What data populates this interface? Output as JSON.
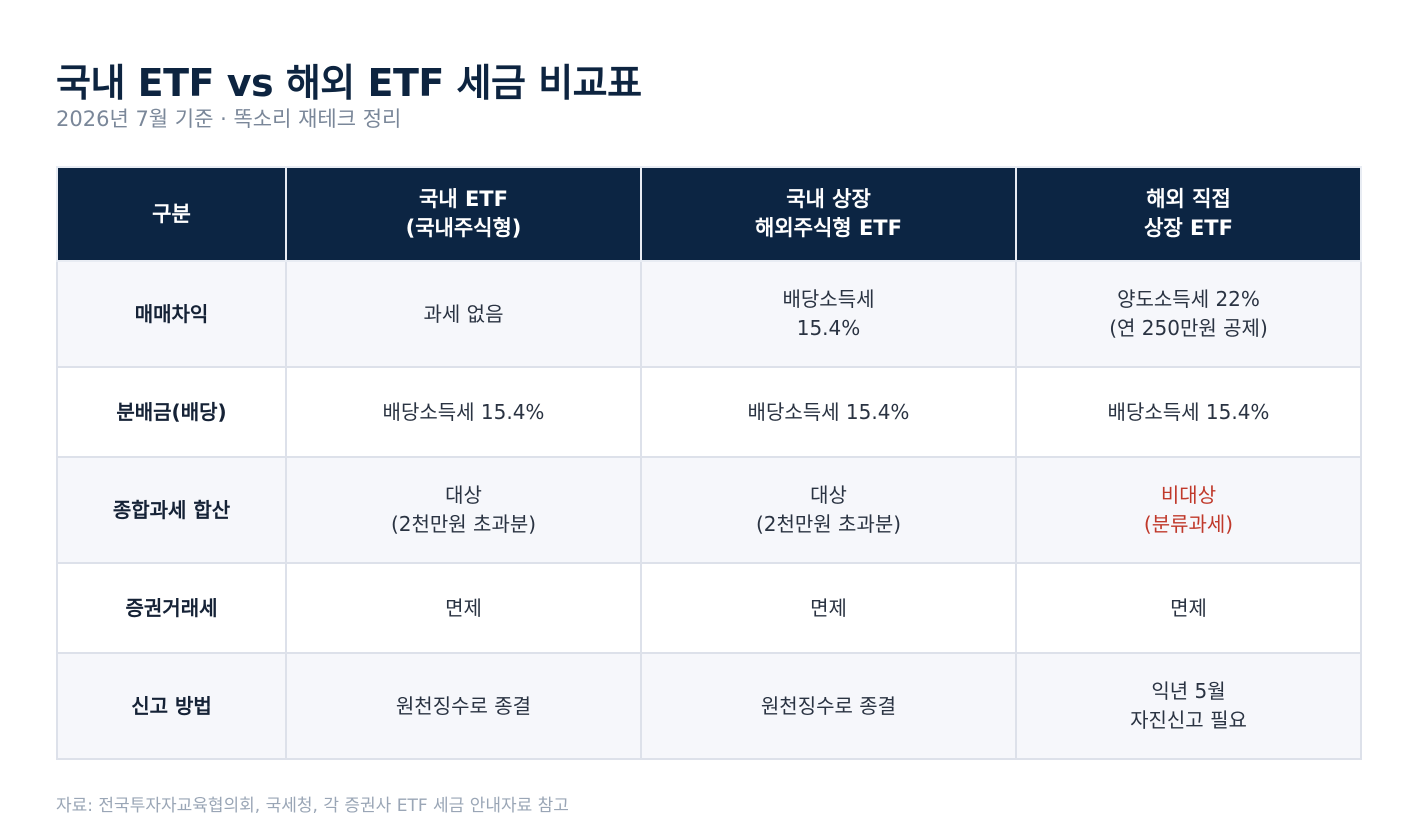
{
  "header": {
    "title": "국내 ETF vs 해외 ETF 세금 비교표",
    "subtitle": "2026년 7월 기준 · 똑소리 재테크 정리"
  },
  "table": {
    "columns": [
      [
        "구분"
      ],
      [
        "국내 ETF",
        "(국내주식형)"
      ],
      [
        "국내 상장",
        "해외주식형 ETF"
      ],
      [
        "해외 직접",
        "상장 ETF"
      ]
    ],
    "rows": [
      {
        "label": "매매차익",
        "cells": [
          [
            "과세 없음"
          ],
          [
            "배당소득세",
            "15.4%"
          ],
          [
            "양도소득세 22%",
            "(연 250만원 공제)"
          ]
        ]
      },
      {
        "label": "분배금(배당)",
        "cells": [
          [
            "배당소득세 15.4%"
          ],
          [
            "배당소득세 15.4%"
          ],
          [
            "배당소득세 15.4%"
          ]
        ]
      },
      {
        "label": "종합과세 합산",
        "cells": [
          [
            "대상",
            "(2천만원 초과분)"
          ],
          [
            "대상",
            "(2천만원 초과분)"
          ],
          [
            "비대상",
            "(분류과세)"
          ]
        ]
      },
      {
        "label": "증권거래세",
        "cells": [
          [
            "면제"
          ],
          [
            "면제"
          ],
          [
            "면제"
          ]
        ]
      },
      {
        "label": "신고 방법",
        "cells": [
          [
            "원천징수로 종결"
          ],
          [
            "원천징수로 종결"
          ],
          [
            "익년 5월",
            "자진신고 필요"
          ]
        ]
      }
    ]
  },
  "colors": {
    "header_bg": "#0c2543",
    "highlight": "#c0392b",
    "row_shade": "#f6f7fb"
  },
  "footer": {
    "source": "자료: 전국투자자교육협의회, 국세청, 각 증권사 ETF 세금 안내자료 참고"
  }
}
